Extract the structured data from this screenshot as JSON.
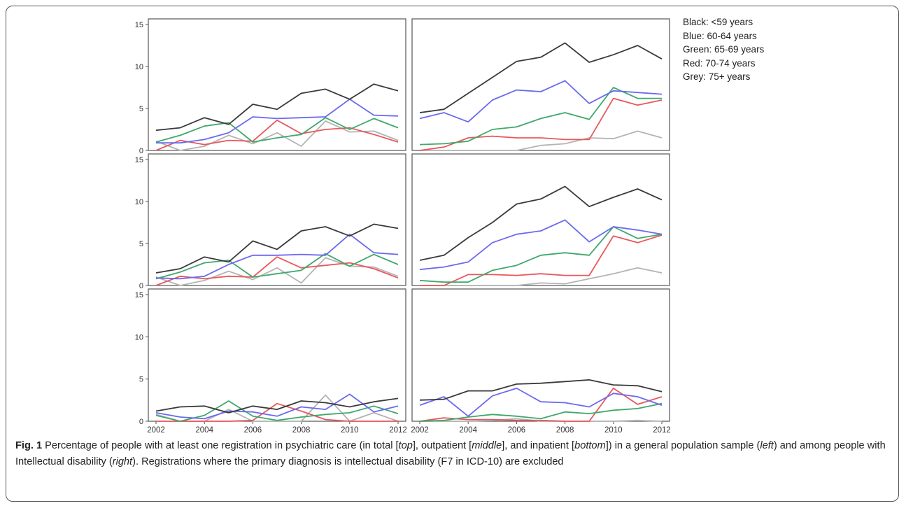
{
  "legend": {
    "items": [
      {
        "text": "Black: <59 years",
        "color": "#3a3a3a"
      },
      {
        "text": "Blue: 60-64 years",
        "color": "#6a6af0"
      },
      {
        "text": "Green: 65-69 years",
        "color": "#3fa86b"
      },
      {
        "text": "Red: 70-74 years",
        "color": "#e9575c"
      },
      {
        "text": "Grey: 75+ years",
        "color": "#b4b4b4"
      }
    ]
  },
  "caption": {
    "label": "Fig. 1",
    "parts": [
      " Percentage of people with at least one registration in psychiatric care (in total [",
      "top",
      "], outpatient [",
      "middle",
      "], and inpatient [",
      "bottom",
      "]) in a general population sample (",
      "left",
      ") and among people with Intellectual disability (",
      "right",
      "). Registrations where the primary diagnosis is intellectual disability (F7 in ICD-10) are excluded"
    ]
  },
  "chart_data": {
    "type": "line",
    "layout": "3x2 panel grid",
    "x": [
      2002,
      2003,
      2004,
      2005,
      2006,
      2007,
      2008,
      2009,
      2010,
      2011,
      2012
    ],
    "x_ticks": [
      "2002",
      "2004",
      "2006",
      "2008",
      "2010",
      "2012"
    ],
    "y_ticks": [
      "0",
      "5",
      "10",
      "15"
    ],
    "ylim": [
      0,
      15
    ],
    "grid": false,
    "legend_placement": "top-right outside",
    "panels": [
      {
        "id": "total-general",
        "series": [
          {
            "color": "#3a3a3a",
            "values": [
              2.4,
              2.7,
              3.9,
              3.1,
              5.5,
              4.9,
              6.8,
              7.3,
              6.1,
              7.9,
              7.1
            ]
          },
          {
            "color": "#6a6af0",
            "values": [
              0.9,
              0.9,
              1.3,
              2.1,
              4.0,
              3.8,
              3.9,
              4.0,
              6.1,
              4.2,
              4.1
            ]
          },
          {
            "color": "#3fa86b",
            "values": [
              1.0,
              1.8,
              2.9,
              3.3,
              1.0,
              1.5,
              1.9,
              3.9,
              2.5,
              3.8,
              2.7
            ]
          },
          {
            "color": "#e9575c",
            "values": [
              0.0,
              1.2,
              0.7,
              1.2,
              1.1,
              3.6,
              2.0,
              2.5,
              2.7,
              1.9,
              1.0
            ]
          },
          {
            "color": "#b4b4b4",
            "values": [
              1.1,
              0.0,
              0.5,
              1.8,
              0.8,
              2.1,
              0.5,
              3.5,
              2.2,
              2.3,
              1.2
            ]
          }
        ]
      },
      {
        "id": "total-id",
        "series": [
          {
            "color": "#3a3a3a",
            "values": [
              4.5,
              4.9,
              6.8,
              8.7,
              10.6,
              11.1,
              12.8,
              10.5,
              11.4,
              12.5,
              10.9
            ]
          },
          {
            "color": "#6a6af0",
            "values": [
              3.8,
              4.5,
              3.4,
              6.0,
              7.2,
              7.0,
              8.3,
              5.6,
              7.1,
              6.9,
              6.7
            ]
          },
          {
            "color": "#3fa86b",
            "values": [
              0.7,
              0.8,
              1.1,
              2.5,
              2.8,
              3.8,
              4.5,
              3.7,
              7.5,
              6.2,
              6.2
            ]
          },
          {
            "color": "#e9575c",
            "values": [
              0.0,
              0.4,
              1.5,
              1.7,
              1.5,
              1.5,
              1.3,
              1.3,
              6.2,
              5.4,
              6.0
            ]
          },
          {
            "color": "#b4b4b4",
            "values": [
              0.0,
              0.0,
              0.0,
              0.0,
              0.0,
              0.6,
              0.8,
              1.5,
              1.4,
              2.3,
              1.5
            ]
          }
        ]
      },
      {
        "id": "outpatient-general",
        "series": [
          {
            "color": "#3a3a3a",
            "values": [
              1.5,
              2.0,
              3.4,
              2.8,
              5.3,
              4.3,
              6.5,
              7.0,
              5.9,
              7.3,
              6.8
            ]
          },
          {
            "color": "#6a6af0",
            "values": [
              0.9,
              0.8,
              1.1,
              2.5,
              3.6,
              3.6,
              3.7,
              3.6,
              6.1,
              3.9,
              3.7
            ]
          },
          {
            "color": "#3fa86b",
            "values": [
              0.8,
              1.6,
              2.7,
              3.0,
              1.0,
              1.4,
              1.8,
              3.8,
              2.3,
              3.7,
              2.5
            ]
          },
          {
            "color": "#e9575c",
            "values": [
              0.0,
              1.1,
              0.8,
              1.1,
              1.0,
              3.4,
              2.1,
              2.4,
              2.7,
              2.0,
              0.9
            ]
          },
          {
            "color": "#b4b4b4",
            "values": [
              1.0,
              0.0,
              0.6,
              1.7,
              0.7,
              2.1,
              0.3,
              3.3,
              2.3,
              2.2,
              1.1
            ]
          }
        ]
      },
      {
        "id": "outpatient-id",
        "series": [
          {
            "color": "#3a3a3a",
            "values": [
              3.0,
              3.6,
              5.7,
              7.5,
              9.7,
              10.3,
              11.8,
              9.4,
              10.5,
              11.5,
              10.2
            ]
          },
          {
            "color": "#6a6af0",
            "values": [
              1.9,
              2.2,
              2.8,
              5.1,
              6.1,
              6.5,
              7.8,
              5.2,
              7.0,
              6.6,
              6.1
            ]
          },
          {
            "color": "#3fa86b",
            "values": [
              0.6,
              0.4,
              0.4,
              1.8,
              2.4,
              3.6,
              3.9,
              3.6,
              7.0,
              5.6,
              6.1
            ]
          },
          {
            "color": "#e9575c",
            "values": [
              0.0,
              0.0,
              1.3,
              1.3,
              1.2,
              1.4,
              1.2,
              1.2,
              5.9,
              5.1,
              6.0
            ]
          },
          {
            "color": "#b4b4b4",
            "values": [
              0.0,
              0.0,
              0.0,
              0.0,
              0.0,
              0.3,
              0.2,
              0.8,
              1.4,
              2.1,
              1.5
            ]
          }
        ]
      },
      {
        "id": "inpatient-general",
        "series": [
          {
            "color": "#3a3a3a",
            "values": [
              1.2,
              1.7,
              1.8,
              1.0,
              1.8,
              1.4,
              2.4,
              2.2,
              1.7,
              2.3,
              2.7
            ]
          },
          {
            "color": "#6a6af0",
            "values": [
              1.0,
              0.5,
              0.3,
              1.2,
              1.1,
              0.6,
              1.7,
              1.4,
              3.2,
              1.1,
              1.8
            ]
          },
          {
            "color": "#3fa86b",
            "values": [
              0.7,
              0.0,
              0.7,
              2.4,
              0.6,
              0.1,
              0.5,
              0.8,
              1.0,
              1.8,
              0.9
            ]
          },
          {
            "color": "#e9575c",
            "values": [
              0.0,
              0.0,
              0.0,
              0.0,
              0.1,
              2.1,
              1.2,
              0.2,
              0.0,
              0.0,
              0.0
            ]
          },
          {
            "color": "#b4b4b4",
            "values": [
              0.8,
              0.0,
              0.0,
              1.4,
              0.0,
              0.0,
              0.0,
              3.1,
              0.0,
              1.0,
              0.0
            ]
          }
        ]
      },
      {
        "id": "inpatient-id",
        "series": [
          {
            "color": "#3a3a3a",
            "values": [
              2.5,
              2.6,
              3.6,
              3.6,
              4.4,
              4.5,
              4.7,
              4.9,
              4.3,
              4.2,
              3.5
            ]
          },
          {
            "color": "#6a6af0",
            "values": [
              1.9,
              2.9,
              0.6,
              3.0,
              3.9,
              2.3,
              2.2,
              1.7,
              3.3,
              2.9,
              1.9
            ]
          },
          {
            "color": "#3fa86b",
            "values": [
              0.0,
              0.1,
              0.5,
              0.8,
              0.6,
              0.3,
              1.1,
              0.9,
              1.3,
              1.5,
              2.1
            ]
          },
          {
            "color": "#e9575c",
            "values": [
              0.0,
              0.4,
              0.2,
              0.2,
              0.1,
              0.1,
              0.0,
              0.0,
              3.9,
              2.0,
              2.9
            ]
          },
          {
            "color": "#b4b4b4",
            "values": [
              0.0,
              0.0,
              0.0,
              0.1,
              0.3,
              0.0,
              0.0,
              0.0,
              0.0,
              0.1,
              0.0
            ]
          }
        ]
      }
    ]
  }
}
